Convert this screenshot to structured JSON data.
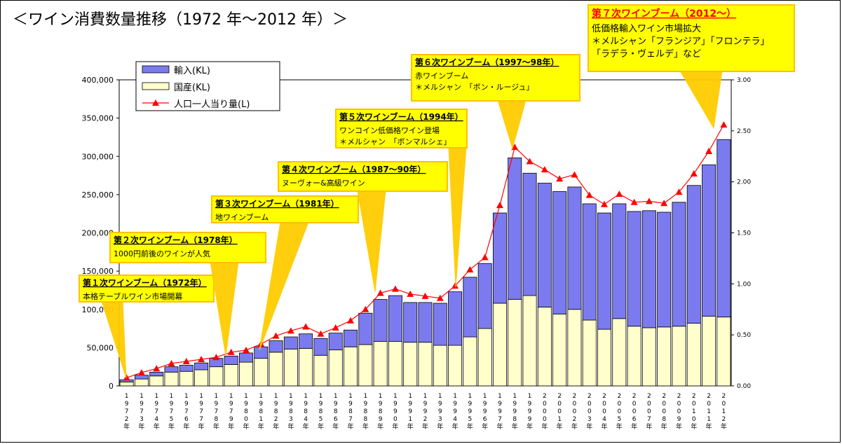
{
  "title": "＜ワイン消費数量推移（1972 年～2012 年）＞",
  "chart_data": {
    "type": "bar",
    "stacked": true,
    "categories": [
      "1972年",
      "1973年",
      "1974年",
      "1975年",
      "1976年",
      "1977年",
      "1978年",
      "1979年",
      "1980年",
      "1981年",
      "1982年",
      "1983年",
      "1984年",
      "1985年",
      "1986年",
      "1987年",
      "1988年",
      "1989年",
      "1990年",
      "1991年",
      "1992年",
      "1993年",
      "1994年",
      "1995年",
      "1996年",
      "1997年",
      "1998年",
      "1999年",
      "2000年",
      "2001年",
      "2002年",
      "2003年",
      "2004年",
      "2005年",
      "2006年",
      "2007年",
      "2008年",
      "2009年",
      "2010年",
      "2011年",
      "2012年"
    ],
    "series": [
      {
        "name": "輸入(KL)",
        "axis": "left",
        "color": "#7B7BEF",
        "values": [
          3000,
          5000,
          5000,
          7000,
          8000,
          9000,
          11000,
          11000,
          12000,
          15000,
          15000,
          16000,
          19000,
          22000,
          22000,
          22000,
          41000,
          55000,
          60000,
          52000,
          52000,
          55000,
          70000,
          78000,
          85000,
          118000,
          185000,
          160000,
          162000,
          160000,
          160000,
          152000,
          152000,
          150000,
          150000,
          153000,
          150000,
          162000,
          180000,
          198000,
          232000
        ]
      },
      {
        "name": "国産(KL)",
        "axis": "left",
        "color": "#FFFFCC",
        "values": [
          5000,
          9000,
          13000,
          18000,
          19000,
          21000,
          25000,
          28000,
          31000,
          36000,
          44000,
          48000,
          49000,
          40000,
          47000,
          51000,
          54000,
          58000,
          58000,
          57000,
          57000,
          53000,
          53000,
          64000,
          75000,
          108000,
          113000,
          118000,
          103000,
          94000,
          100000,
          86000,
          74000,
          88000,
          78000,
          76000,
          77000,
          78000,
          82000,
          91000,
          90000
        ]
      },
      {
        "name": "人口一人当り量(L)",
        "axis": "right",
        "type": "line",
        "color": "#FF0000",
        "values": [
          0.08,
          0.13,
          0.17,
          0.22,
          0.24,
          0.26,
          0.28,
          0.33,
          0.35,
          0.41,
          0.49,
          0.54,
          0.58,
          0.51,
          0.57,
          0.64,
          0.75,
          0.91,
          0.95,
          0.9,
          0.88,
          0.86,
          0.98,
          1.14,
          1.26,
          1.77,
          2.34,
          2.2,
          2.12,
          2.03,
          2.07,
          1.87,
          1.78,
          1.88,
          1.8,
          1.81,
          1.79,
          1.9,
          2.08,
          2.3,
          2.56
        ]
      }
    ],
    "y_left": {
      "min": 0,
      "max": 400000,
      "step": 50000,
      "tick_labels": [
        "0",
        "50,000",
        "100,000",
        "150,000",
        "200,000",
        "250,000",
        "300,000",
        "350,000",
        "400,000"
      ]
    },
    "y_right": {
      "min": 0,
      "max": 3.0,
      "step": 0.5,
      "tick_labels": [
        "0.00",
        "0.50",
        "1.00",
        "1.50",
        "2.00",
        "2.50",
        "3.00"
      ]
    },
    "legend_placement": "top-left",
    "callouts": [
      {
        "title": "第１次ワインブーム（1972年）",
        "lines": [
          "本格テーブルワイン市場開幕"
        ],
        "target_index": 0
      },
      {
        "title": "第２次ワインブーム（1978年）",
        "lines": [
          "1000円前後のワインが人気"
        ],
        "target_index": 7
      },
      {
        "title": "第３次ワインブーム（1981年）",
        "lines": [
          "地ワインブーム"
        ],
        "target_index": 9
      },
      {
        "title": "第４次ワインブーム（1987～90年）",
        "lines": [
          "ヌーヴォー&高級ワイン"
        ],
        "target_index": 17
      },
      {
        "title": "第５次ワインブーム（1994年）",
        "lines": [
          "ワンコイン低価格ワイン登場",
          "＊メルシャン　「ボンマルシェ」"
        ],
        "target_index": 22
      },
      {
        "title": "第６次ワインブーム（1997～98年）",
        "lines": [
          "赤ワインブーム",
          "＊メルシャン　「ボン・ルージュ」"
        ],
        "target_index": 26
      },
      {
        "title": "第７次ワインブーム（2012～）",
        "lines": [
          "低価格輸入ワイン市場拡大",
          "＊メルシャン「フランジア」「フロンテラ」",
          "「ラデラ・ヴェルデ」など"
        ],
        "target_index": 40,
        "title_color": "#FF0000"
      }
    ]
  }
}
